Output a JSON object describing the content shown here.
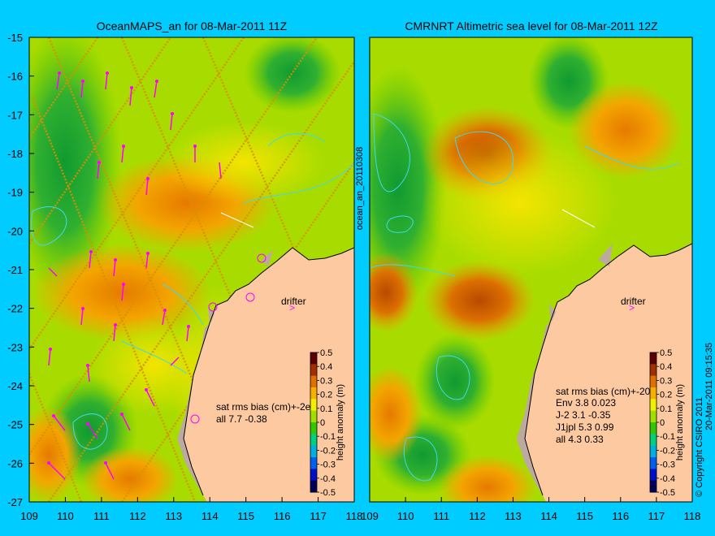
{
  "left_panel": {
    "title": "OceanMAPS_an for 08-Mar-2011 11Z",
    "drifter_label": "drifter",
    "stats_header": "sat rms bias (cm)+-2e",
    "stats_rows": [
      "all 7.7 -0.38"
    ]
  },
  "right_panel": {
    "title": "CMRNRT Altimetric sea level  for 08-Mar-2011 12Z",
    "drifter_label": "drifter",
    "stats_header": "sat rms bias (cm)+-20",
    "stats_rows": [
      "Env   3.8 0.023",
      "J-2   3.1 -0.35",
      "J1jpl 5.3 0.99",
      "all 4.3 0.33"
    ]
  },
  "side_label_left": "ocean_an_20110308",
  "side_label_right": "20-Mar-2011 09:15:35",
  "copyright": "© Copyright CSIRO 2011",
  "lat_ticks": [
    "-15",
    "-16",
    "-17",
    "-18",
    "-19",
    "-20",
    "-21",
    "-22",
    "-23",
    "-24",
    "-25",
    "-26",
    "-27"
  ],
  "lon_ticks": [
    "109",
    "110",
    "111",
    "112",
    "113",
    "114",
    "115",
    "116",
    "117",
    "118"
  ],
  "colorbar": {
    "label": "height anomaly (m)",
    "ticks": [
      "0.5",
      "0.4",
      "0.3",
      "0.2",
      "0.1",
      "0",
      "-0.1",
      "-0.2",
      "-0.3",
      "-0.4",
      "-0.5"
    ],
    "colors": [
      "#00005a",
      "#0010c8",
      "#0060f0",
      "#00b0e0",
      "#00d080",
      "#30c800",
      "#a0e000",
      "#f0f000",
      "#f8b000",
      "#e07000",
      "#a03000",
      "#5a0000"
    ]
  },
  "colors": {
    "background": "#00ccff",
    "land": "#fcc9a1",
    "shelf": "#bcaaa0",
    "drifter": "#ff00ff",
    "contour": "#40d8f0"
  }
}
